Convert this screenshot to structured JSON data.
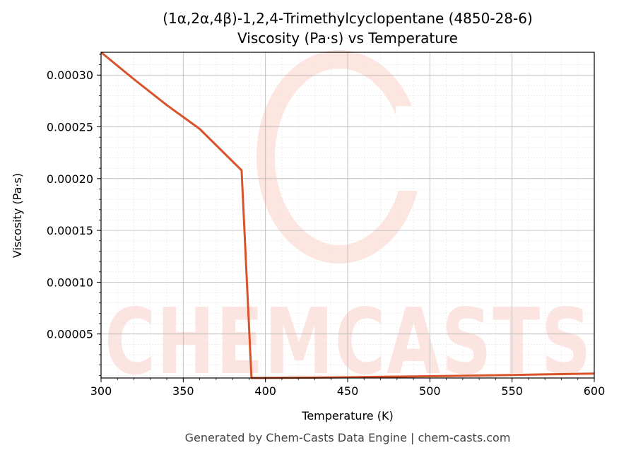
{
  "chart_data": {
    "type": "line",
    "title": "(1α,2α,4β)-1,2,4-Trimethylcyclopentane (4850-28-6)",
    "subtitle": "Viscosity (Pa·s) vs Temperature",
    "xlabel": "Temperature (K)",
    "ylabel": "Viscosity (Pa·s)",
    "xlim": [
      300,
      600
    ],
    "ylim": [
      7.5e-06,
      0.000322
    ],
    "x_ticks": [
      300,
      350,
      400,
      450,
      500,
      550,
      600
    ],
    "x_tick_labels": [
      "300",
      "350",
      "400",
      "450",
      "500",
      "550",
      "600"
    ],
    "y_ticks": [
      5e-05,
      0.0001,
      0.00015,
      0.0002,
      0.00025,
      0.0003
    ],
    "y_tick_labels": [
      "0.00005",
      "0.00010",
      "0.00015",
      "0.00020",
      "0.00025",
      "0.00030"
    ],
    "grid": true,
    "series": [
      {
        "color": "#d9532a",
        "x": [
          300,
          320,
          340,
          360,
          385.5,
          391.5,
          420,
          450,
          500,
          550,
          600
        ],
        "y": [
          0.000322,
          0.000296,
          0.000271,
          0.000248,
          0.000208,
          7.5e-06,
          7.8e-06,
          8.2e-06,
          9.2e-06,
          1.04e-05,
          1.18e-05
        ]
      }
    ]
  },
  "watermark": {
    "text": "CHEMCASTS",
    "color": "#fcdcd6"
  },
  "footer": "Generated by Chem-Casts Data Engine | chem-casts.com"
}
